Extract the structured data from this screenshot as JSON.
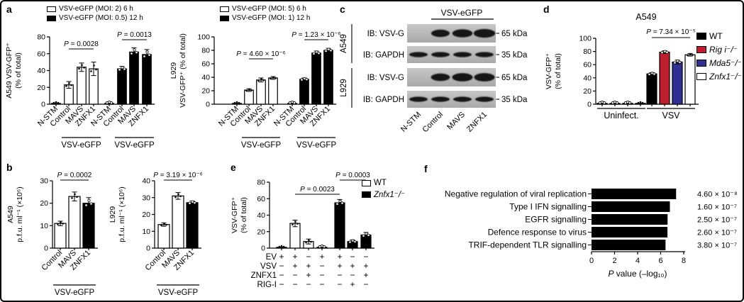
{
  "figure": {
    "panel_labels": {
      "a": "a",
      "b": "b",
      "c": "c",
      "d": "d",
      "e": "e",
      "f": "f"
    }
  },
  "chart_data": [
    {
      "id": "a1",
      "type": "bar",
      "ylabel_lines": [
        "A549 VSV-GFP⁺",
        "(% of total)"
      ],
      "ylim": [
        0,
        80
      ],
      "yticks": [
        0,
        20,
        40,
        60,
        80
      ],
      "legend": [
        {
          "label": "VSV-eGFP (MOI: 2) 6 h",
          "color": "#ffffff"
        },
        {
          "label": "VSV-eGFP (MOI: 0.5) 12 h",
          "color": "#000000"
        }
      ],
      "categories": [
        "N-STM",
        "Control",
        "MAVS",
        "ZNFX1",
        "N-STM",
        "Control",
        "MAVS",
        "ZNFX1"
      ],
      "values": [
        1,
        23,
        44,
        42,
        1,
        42,
        62,
        59
      ],
      "errors": [
        0.4,
        4,
        5,
        8,
        0.4,
        3,
        5,
        6
      ],
      "colors": [
        "#ffffff",
        "#ffffff",
        "#ffffff",
        "#ffffff",
        "#000000",
        "#000000",
        "#000000",
        "#000000"
      ],
      "group_labels": [
        {
          "label": "VSV-eGFP",
          "from": 1,
          "to": 3
        },
        {
          "label": "VSV-eGFP",
          "from": 5,
          "to": 7
        }
      ],
      "p_annotations": [
        {
          "text": "P = 0.0028",
          "from": 1,
          "to": 3
        },
        {
          "text": "P = 0.0013",
          "from": 5,
          "to": 7
        }
      ]
    },
    {
      "id": "a2",
      "type": "bar",
      "ylabel_lines": [
        "L929",
        "VSV-GFP⁺ (% of total)"
      ],
      "ylim": [
        0,
        100
      ],
      "yticks": [
        0,
        20,
        40,
        60,
        80,
        100
      ],
      "legend": [
        {
          "label": "VSV-eGFP (MOI: 5) 6 h",
          "color": "#ffffff"
        },
        {
          "label": "VSV-eGFP (MOI: 1) 12 h",
          "color": "#000000"
        }
      ],
      "categories": [
        "N-STM",
        "Control",
        "MAVS",
        "ZNFX1",
        "N-STM",
        "Control",
        "MAVS",
        "ZNFX1"
      ],
      "values": [
        1,
        21,
        36,
        39,
        1,
        37,
        76,
        80
      ],
      "errors": [
        0.4,
        2,
        3,
        2,
        0.4,
        2,
        3,
        3
      ],
      "colors": [
        "#ffffff",
        "#ffffff",
        "#ffffff",
        "#ffffff",
        "#000000",
        "#000000",
        "#000000",
        "#000000"
      ],
      "group_labels": [
        {
          "label": "VSV-eGFP",
          "from": 1,
          "to": 3
        },
        {
          "label": "VSV-eGFP",
          "from": 5,
          "to": 7
        }
      ],
      "p_annotations": [
        {
          "text": "P = 4.60 × 10⁻⁶",
          "from": 1,
          "to": 3
        },
        {
          "text": "P = 1.23 × 10⁻⁶",
          "from": 5,
          "to": 7
        }
      ]
    },
    {
      "id": "b1",
      "type": "bar",
      "ylabel_lines": [
        "A549",
        "p.f.u. ml⁻¹ (×10⁶)"
      ],
      "ylim": [
        0,
        30
      ],
      "yticks": [
        0,
        10,
        20,
        30
      ],
      "categories": [
        "Control",
        "MAVS",
        "ZNFX1"
      ],
      "values": [
        11,
        23,
        20
      ],
      "errors": [
        1,
        2,
        2.5
      ],
      "colors": [
        "#ffffff",
        "#ffffff",
        "#000000"
      ],
      "group_labels": [
        {
          "label": "VSV-eGFP",
          "from": 0,
          "to": 2
        }
      ],
      "p_annotations": [
        {
          "text": "P = 0.0002",
          "from": 0,
          "to": 2
        }
      ]
    },
    {
      "id": "b2",
      "type": "bar",
      "ylabel_lines": [
        "L929",
        "p.f.u. ml⁻¹ (×10⁶)"
      ],
      "ylim": [
        0,
        40
      ],
      "yticks": [
        0,
        10,
        20,
        30,
        40
      ],
      "categories": [
        "Control",
        "MAVS",
        "ZNFX1"
      ],
      "values": [
        14,
        31,
        27
      ],
      "errors": [
        1,
        2,
        1
      ],
      "colors": [
        "#ffffff",
        "#ffffff",
        "#000000"
      ],
      "group_labels": [
        {
          "label": "VSV-eGFP",
          "from": 0,
          "to": 2
        }
      ],
      "p_annotations": [
        {
          "text": "P = 3.19 × 10⁻⁶",
          "from": 0,
          "to": 2
        }
      ]
    },
    {
      "id": "d",
      "type": "bar",
      "title": "A549",
      "ylabel_lines": [
        "VSV-GFP⁺",
        "(% of total)"
      ],
      "ylim": [
        0,
        100
      ],
      "yticks": [
        0,
        20,
        40,
        60,
        80,
        100
      ],
      "group_categories": [
        "Uninfect.",
        "VSV"
      ],
      "series": [
        {
          "name": "WT",
          "color": "#000000",
          "italic": false,
          "values": [
            1,
            46
          ]
        },
        {
          "name": "Rig i⁻/⁻",
          "color": "#bf1e2e",
          "italic": true,
          "values": [
            1,
            79
          ]
        },
        {
          "name": "Mda5⁻/⁻",
          "color": "#2e3192",
          "italic": true,
          "values": [
            1,
            64
          ]
        },
        {
          "name": "Znfx1⁻/⁻",
          "color": "#ffffff",
          "italic": true,
          "values": [
            1,
            75
          ]
        }
      ],
      "errors": [
        [
          0.3,
          2
        ],
        [
          0.3,
          2
        ],
        [
          0.3,
          3
        ],
        [
          0.3,
          2
        ]
      ],
      "p_annotations": [
        {
          "text": "P = 7.34 × 10⁻⁵",
          "from": 4,
          "to": 7
        }
      ]
    },
    {
      "id": "e",
      "type": "bar",
      "ylabel_lines": [
        "VSV-GFP⁺",
        "(% of total)"
      ],
      "ylim": [
        0,
        80
      ],
      "yticks": [
        0,
        20,
        40,
        60,
        80
      ],
      "legend": [
        {
          "label": "WT",
          "color": "#ffffff",
          "italic": false
        },
        {
          "label": "Znfx1⁻/⁻",
          "color": "#000000",
          "italic": true
        }
      ],
      "values": [
        1,
        30,
        8,
        1,
        55,
        8,
        16
      ],
      "errors": [
        0.4,
        4,
        3,
        0.4,
        4,
        2,
        3
      ],
      "colors": [
        "#ffffff",
        "#ffffff",
        "#ffffff",
        "#000000",
        "#000000",
        "#000000",
        "#000000"
      ],
      "p_annotations": [
        {
          "text": "P = 0.0023",
          "from": 1,
          "to": 4
        },
        {
          "text": "P = 0.0003",
          "from": 4,
          "to": 6
        }
      ],
      "condition_matrix": {
        "rows": [
          {
            "label": "EV",
            "signs": [
              "+",
              "+",
              "−",
              "+",
              "+",
              "−",
              "−"
            ]
          },
          {
            "label": "VSV",
            "signs": [
              "−",
              "+",
              "+",
              "−",
              "+",
              "+",
              "+"
            ]
          },
          {
            "label": "ZNFX1",
            "signs": [
              "−",
              "−",
              "+",
              "−",
              "−",
              "−",
              "+"
            ]
          },
          {
            "label": "RIG-I",
            "signs": [
              "−",
              "−",
              "−",
              "−",
              "−",
              "+",
              "−"
            ]
          }
        ]
      }
    },
    {
      "id": "f",
      "type": "hbar",
      "categories": [
        "Negative regulation of viral replication",
        "Type I IFN signalling",
        "EGFR signalling",
        "Defence response to virus",
        "TRIF-dependent TLR signalling"
      ],
      "values": [
        7.34,
        6.8,
        6.6,
        6.59,
        6.42
      ],
      "value_labels": [
        "4.60 × 10⁻⁸",
        "1.60 × 10⁻⁷",
        "2.50 × 10⁻⁷",
        "2.60 × 10⁻⁷",
        "3.80 × 10⁻⁷"
      ],
      "xlim": [
        0,
        8
      ],
      "xticks": [
        0,
        2,
        4,
        6,
        8
      ],
      "xlabel": "P value (–log₁₀)"
    }
  ],
  "blot": {
    "id": "c",
    "header": "VSV-eGFP",
    "lanes": [
      "N-STM",
      "Control",
      "MAVS",
      "ZNFX1"
    ],
    "groups": [
      {
        "cell_line": "A549",
        "rows": [
          {
            "label": "IB: VSV-G",
            "size": "65 kDa",
            "bands": [
              0,
              0.85,
              1.05,
              1.2
            ]
          },
          {
            "label": "IB: GAPDH",
            "size": "35 kDa",
            "bands": [
              1,
              1,
              1,
              1
            ]
          }
        ]
      },
      {
        "cell_line": "L929",
        "rows": [
          {
            "label": "IB: VSV-G",
            "size": "65 kDa",
            "bands": [
              0,
              0.9,
              1.1,
              1.1
            ]
          },
          {
            "label": "IB: GAPDH",
            "size": "35 kDa",
            "bands": [
              1,
              1,
              1,
              1
            ]
          }
        ]
      }
    ]
  }
}
